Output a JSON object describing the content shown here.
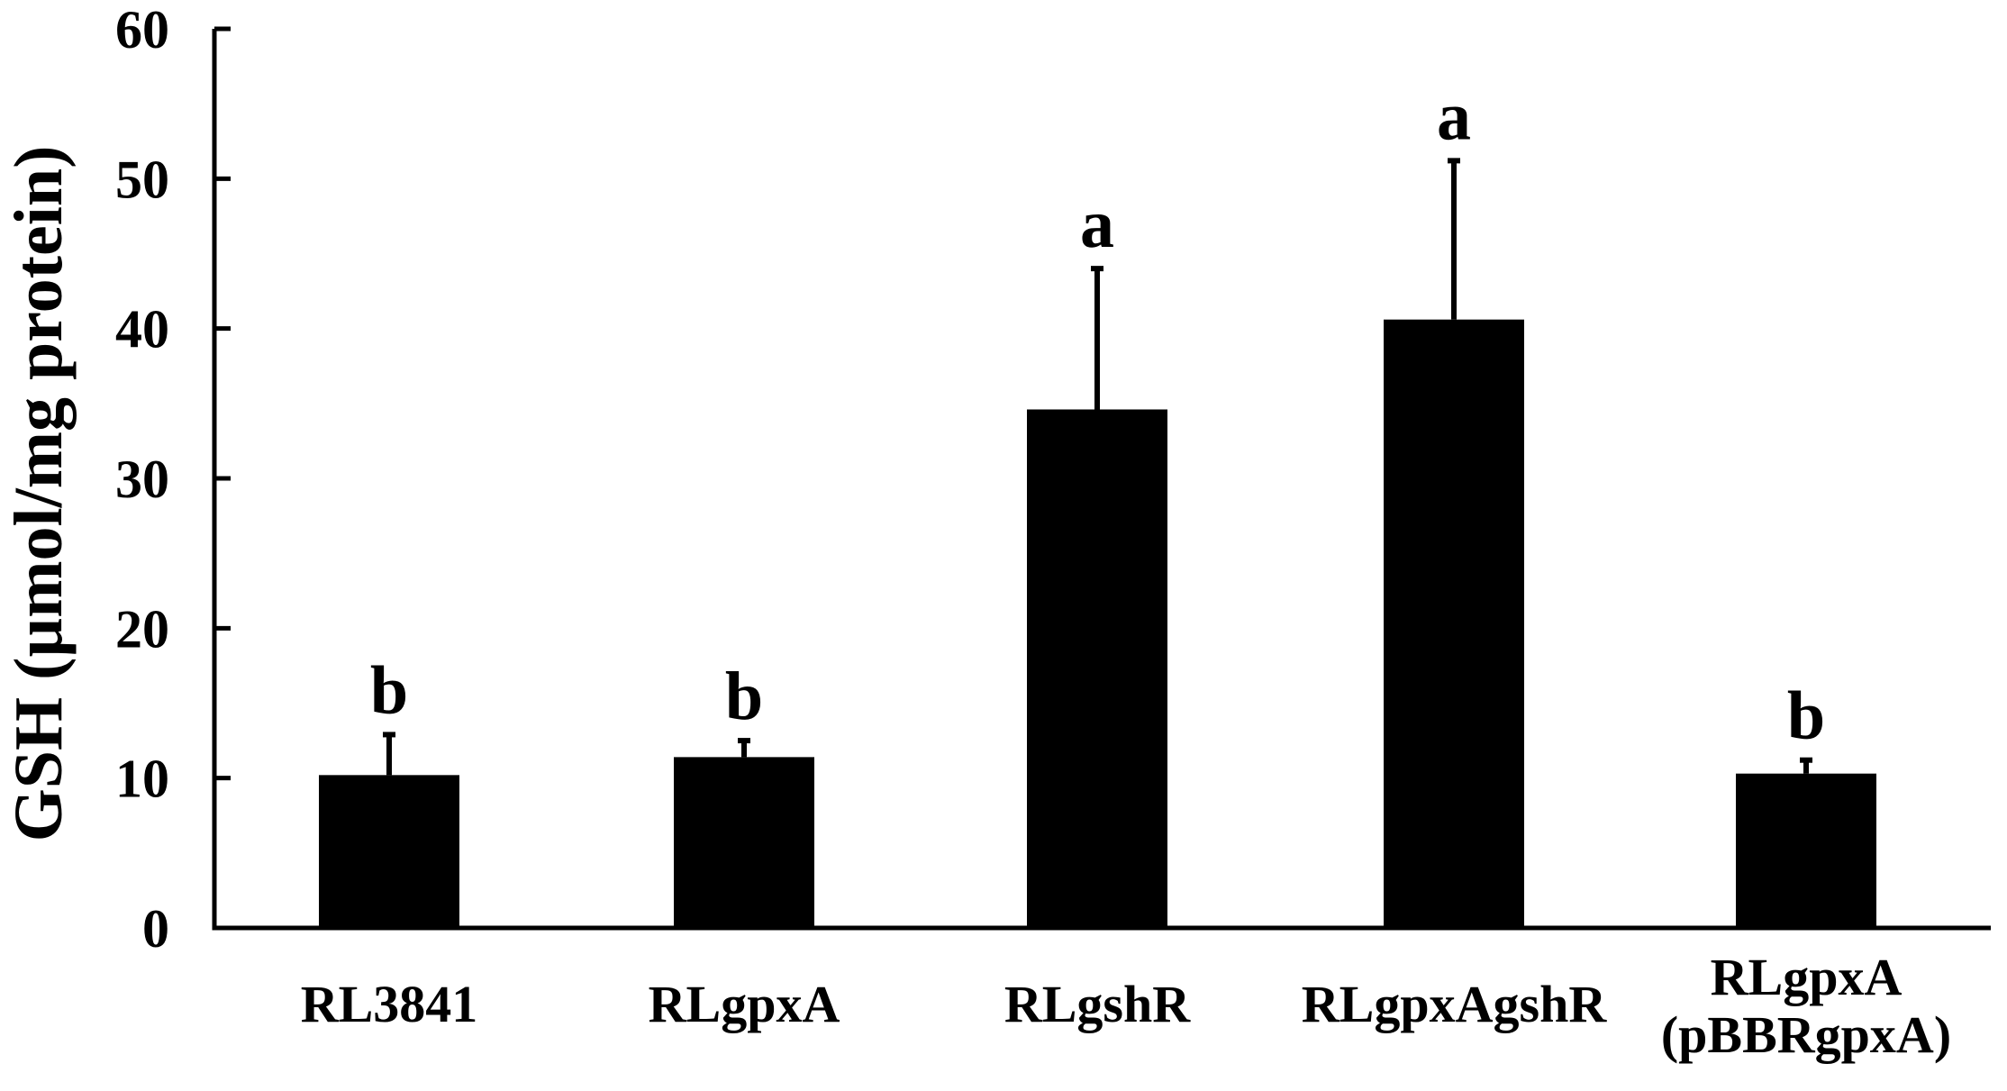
{
  "chart_data": {
    "type": "bar",
    "title": "",
    "xlabel": "",
    "ylabel": "GSH (µmol/mg protein)",
    "ylim": [
      0,
      60
    ],
    "yticks": [
      0,
      10,
      20,
      30,
      40,
      50,
      60
    ],
    "categories": [
      "RL3841",
      "RLgpxA",
      "RLgshR",
      "RLgpxAgshR",
      "RLgpxA (pBBRgpxA)"
    ],
    "category_lines": [
      [
        "RL3841"
      ],
      [
        "RLgpxA"
      ],
      [
        "RLgshR"
      ],
      [
        "RLgpxAgshR"
      ],
      [
        "RLgpxA",
        "(pBBRgpxA)"
      ]
    ],
    "values": [
      10.2,
      11.4,
      34.6,
      40.6,
      10.3
    ],
    "errors": [
      2.7,
      1.1,
      9.4,
      10.6,
      0.9
    ],
    "significance_letters": [
      "b",
      "b",
      "a",
      "a",
      "b"
    ],
    "legend": false,
    "grid": false,
    "bar_color": "#000000"
  }
}
